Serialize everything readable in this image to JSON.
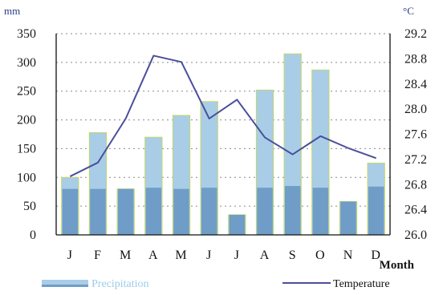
{
  "chart_data": {
    "type": "bar+line",
    "categories": [
      "J",
      "F",
      "M",
      "A",
      "M",
      "J",
      "J",
      "A",
      "S",
      "O",
      "N",
      "D"
    ],
    "xlabel": "Month",
    "series": [
      {
        "name": "Precipitation",
        "type": "bar",
        "axis": "left",
        "values": [
          100,
          178,
          80,
          170,
          208,
          232,
          35,
          252,
          315,
          287,
          58,
          125
        ],
        "lower_values": [
          80,
          80,
          80,
          82,
          80,
          82,
          35,
          82,
          85,
          82,
          58,
          84
        ],
        "color": "#a9cde6",
        "lower_color": "#6f9dc7"
      },
      {
        "name": "Temperature",
        "type": "line",
        "axis": "right",
        "values": [
          26.93,
          27.15,
          27.85,
          28.85,
          28.75,
          27.85,
          28.15,
          27.55,
          27.28,
          27.57,
          27.38,
          27.22
        ],
        "color": "#4a4f9c"
      }
    ],
    "left_axis": {
      "unit": "mm",
      "ylim": [
        0,
        350
      ],
      "ticks": [
        "0",
        "50",
        "100",
        "150",
        "200",
        "250",
        "300",
        "350"
      ]
    },
    "right_axis": {
      "unit": "°C",
      "ylim": [
        26.0,
        29.2
      ],
      "ticks": [
        "26.0",
        "26.4",
        "26.8",
        "27.2",
        "27.6",
        "28.0",
        "28.4",
        "28.8",
        "29.2"
      ]
    },
    "grid": "horizontal dashed",
    "legend": "bottom",
    "legend_labels": [
      "Precipitation",
      "Temperature"
    ]
  }
}
